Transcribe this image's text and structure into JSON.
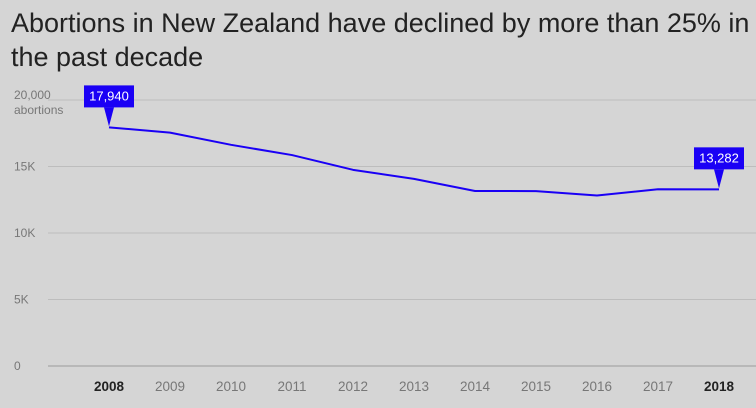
{
  "title": "Abortions in New Zealand have declined by more than 25% in the past decade",
  "colors": {
    "line": "#1a00f5",
    "grid": "#bdbdbd",
    "background": "#d5d5d5"
  },
  "chart_data": {
    "type": "line",
    "title": "Abortions in New Zealand have declined by more than 25% in the past decade",
    "x": [
      "2008",
      "2009",
      "2010",
      "2011",
      "2012",
      "2013",
      "2014",
      "2015",
      "2016",
      "2017",
      "2018"
    ],
    "series": [
      {
        "values": [
          17940,
          17550,
          16630,
          15860,
          14750,
          14070,
          13160,
          13150,
          12820,
          13290,
          13282
        ]
      }
    ],
    "ylim": [
      0,
      20000
    ],
    "yticks": [
      {
        "value": 20000,
        "label": "20,000",
        "sublabel": "abortions"
      },
      {
        "value": 15000,
        "label": "15K"
      },
      {
        "value": 10000,
        "label": "10K"
      },
      {
        "value": 5000,
        "label": "5K"
      },
      {
        "value": 0,
        "label": "0"
      }
    ],
    "bold_x": [
      "2008",
      "2018"
    ],
    "annotations": [
      {
        "x": "2008",
        "value": 17940,
        "label": "17,940"
      },
      {
        "x": "2018",
        "value": 13282,
        "label": "13,282"
      }
    ],
    "grid": true
  }
}
